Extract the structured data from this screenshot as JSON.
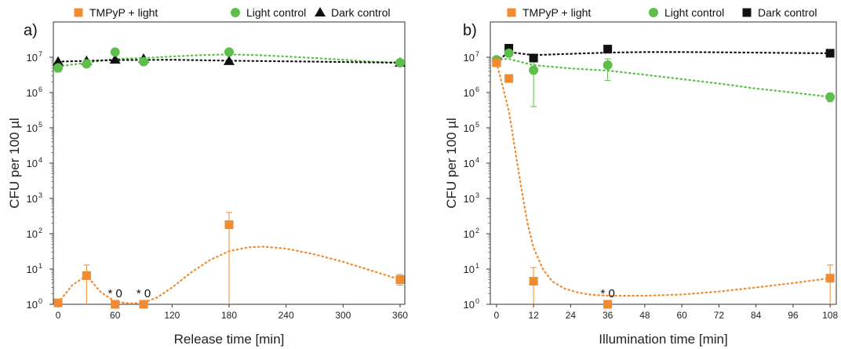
{
  "chart_data": [
    {
      "type": "scatter",
      "panel_label": "a)",
      "xlabel": "Release time [min]",
      "ylabel": "CFU per 100 µl",
      "y_scale": "log",
      "xlim": [
        -5,
        365
      ],
      "ylim": [
        1,
        100000000
      ],
      "xticks": [
        0,
        60,
        120,
        180,
        240,
        300,
        360
      ],
      "yticks": [
        {
          "value": 1,
          "base": "10",
          "exp": "0"
        },
        {
          "value": 10,
          "base": "10",
          "exp": "1"
        },
        {
          "value": 100,
          "base": "10",
          "exp": "2"
        },
        {
          "value": 1000,
          "base": "10",
          "exp": "3"
        },
        {
          "value": 10000,
          "base": "10",
          "exp": "4"
        },
        {
          "value": 100000,
          "base": "10",
          "exp": "5"
        },
        {
          "value": 1000000,
          "base": "10",
          "exp": "6"
        },
        {
          "value": 10000000,
          "base": "10",
          "exp": "7"
        }
      ],
      "legend_position": "top",
      "series": [
        {
          "name": "TMPyP + light",
          "color": "#f28a30",
          "marker": "square",
          "points": [
            {
              "x": 0,
              "y": 1.1,
              "err": 0
            },
            {
              "x": 30,
              "y": 6.5,
              "err_low": 1,
              "err_high": 13
            },
            {
              "x": 60,
              "y": 1.0,
              "err": 0
            },
            {
              "x": 90,
              "y": 1.0,
              "err": 0
            },
            {
              "x": 180,
              "y": 180,
              "err_low": 1,
              "err_high": 400
            },
            {
              "x": 360,
              "y": 5,
              "err_low": 3.5,
              "err_high": 7
            }
          ],
          "fit": [
            [
              0,
              1.1
            ],
            [
              15,
              3.5
            ],
            [
              30,
              6.5
            ],
            [
              45,
              2.2
            ],
            [
              60,
              1.2
            ],
            [
              75,
              1.05
            ],
            [
              90,
              1.1
            ],
            [
              105,
              1.6
            ],
            [
              120,
              3
            ],
            [
              140,
              8
            ],
            [
              160,
              18
            ],
            [
              180,
              32
            ],
            [
              200,
              41
            ],
            [
              215,
              43
            ],
            [
              240,
              38
            ],
            [
              270,
              26
            ],
            [
              300,
              16
            ],
            [
              330,
              9
            ],
            [
              360,
              5
            ]
          ]
        },
        {
          "name": "Light control",
          "color": "#5cbf4a",
          "marker": "circle",
          "points": [
            {
              "x": 0,
              "y": 5000000,
              "err_low": 3800000,
              "err_high": 6200000
            },
            {
              "x": 30,
              "y": 6500000
            },
            {
              "x": 60,
              "y": 14000000
            },
            {
              "x": 90,
              "y": 7500000
            },
            {
              "x": 180,
              "y": 14000000
            },
            {
              "x": 360,
              "y": 7000000
            }
          ],
          "fit": [
            [
              0,
              5500000
            ],
            [
              30,
              7000000
            ],
            [
              60,
              9000000
            ],
            [
              90,
              9500000
            ],
            [
              120,
              10500000
            ],
            [
              150,
              11500000
            ],
            [
              180,
              12000000
            ],
            [
              210,
              11500000
            ],
            [
              240,
              10500000
            ],
            [
              270,
              9500000
            ],
            [
              300,
              8500000
            ],
            [
              330,
              7500000
            ],
            [
              360,
              7000000
            ]
          ]
        },
        {
          "name": "Dark control",
          "color": "#111111",
          "marker": "triangle",
          "points": [
            {
              "x": 0,
              "y": 7500000
            },
            {
              "x": 30,
              "y": 7800000
            },
            {
              "x": 60,
              "y": 8500000
            },
            {
              "x": 90,
              "y": 9000000
            },
            {
              "x": 180,
              "y": 7800000
            },
            {
              "x": 360,
              "y": 7000000
            }
          ],
          "fit": [
            [
              0,
              7500000
            ],
            [
              60,
              8300000
            ],
            [
              120,
              8500000
            ],
            [
              180,
              8000000
            ],
            [
              270,
              7500000
            ],
            [
              360,
              7000000
            ]
          ]
        }
      ],
      "annotations": [
        {
          "text": "* 0",
          "x": 60,
          "y": 1.6
        },
        {
          "text": "* 0",
          "x": 90,
          "y": 1.6
        }
      ]
    },
    {
      "type": "scatter",
      "panel_label": "b)",
      "xlabel": "Illumination time [min]",
      "ylabel": "CFU per 100 µl",
      "y_scale": "log",
      "xlim": [
        -2,
        110
      ],
      "ylim": [
        1,
        100000000
      ],
      "xticks": [
        0,
        12,
        24,
        36,
        48,
        60,
        72,
        84,
        96,
        108
      ],
      "yticks": [
        {
          "value": 1,
          "base": "10",
          "exp": "0"
        },
        {
          "value": 10,
          "base": "10",
          "exp": "1"
        },
        {
          "value": 100,
          "base": "10",
          "exp": "2"
        },
        {
          "value": 1000,
          "base": "10",
          "exp": "3"
        },
        {
          "value": 10000,
          "base": "10",
          "exp": "4"
        },
        {
          "value": 100000,
          "base": "10",
          "exp": "5"
        },
        {
          "value": 1000000,
          "base": "10",
          "exp": "6"
        },
        {
          "value": 10000000,
          "base": "10",
          "exp": "7"
        }
      ],
      "legend_position": "top",
      "series": [
        {
          "name": "TMPyP + light",
          "color": "#f28a30",
          "marker": "square",
          "points": [
            {
              "x": 0,
              "y": 7000000
            },
            {
              "x": 4,
              "y": 2500000
            },
            {
              "x": 12,
              "y": 4.5,
              "err_low": 1,
              "err_high": 11
            },
            {
              "x": 36,
              "y": 1.0,
              "err": 0
            },
            {
              "x": 108,
              "y": 5.5,
              "err_low": 1,
              "err_high": 13
            }
          ],
          "fit": [
            [
              0,
              7000000
            ],
            [
              2,
              1500000
            ],
            [
              4,
              300000
            ],
            [
              6,
              25000
            ],
            [
              8,
              2000
            ],
            [
              10,
              200
            ],
            [
              12,
              40
            ],
            [
              15,
              10
            ],
            [
              18,
              4.5
            ],
            [
              22,
              2.8
            ],
            [
              26,
              2.2
            ],
            [
              30,
              1.9
            ],
            [
              36,
              1.75
            ],
            [
              48,
              1.75
            ],
            [
              60,
              1.9
            ],
            [
              72,
              2.3
            ],
            [
              84,
              3
            ],
            [
              96,
              4
            ],
            [
              108,
              5.5
            ]
          ]
        },
        {
          "name": "Light control",
          "color": "#5cbf4a",
          "marker": "circle",
          "points": [
            {
              "x": 0,
              "y": 8500000
            },
            {
              "x": 4,
              "y": 13000000
            },
            {
              "x": 12,
              "y": 4300000,
              "err_low": 400000,
              "err_high": 8000000
            },
            {
              "x": 36,
              "y": 6000000,
              "err_low": 2200000,
              "err_high": 9000000
            },
            {
              "x": 108,
              "y": 750000,
              "err_low": 550000,
              "err_high": 950000
            }
          ],
          "fit": [
            [
              0,
              8500000
            ],
            [
              4,
              9000000
            ],
            [
              12,
              6000000
            ],
            [
              24,
              4800000
            ],
            [
              36,
              4200000
            ],
            [
              48,
              3200000
            ],
            [
              60,
              2400000
            ],
            [
              72,
              1800000
            ],
            [
              84,
              1300000
            ],
            [
              96,
              1000000
            ],
            [
              108,
              750000
            ]
          ]
        },
        {
          "name": "Dark control",
          "color": "#111111",
          "marker": "square",
          "points": [
            {
              "x": 0,
              "y": 7500000
            },
            {
              "x": 4,
              "y": 18000000
            },
            {
              "x": 12,
              "y": 9500000
            },
            {
              "x": 36,
              "y": 17000000
            },
            {
              "x": 108,
              "y": 13000000
            }
          ],
          "fit": [
            [
              0,
              7500000
            ],
            [
              4,
              14000000
            ],
            [
              12,
              11500000
            ],
            [
              24,
              12500000
            ],
            [
              36,
              13500000
            ],
            [
              48,
              14000000
            ],
            [
              60,
              14000000
            ],
            [
              72,
              13800000
            ],
            [
              84,
              13500000
            ],
            [
              96,
              13200000
            ],
            [
              108,
              13000000
            ]
          ]
        }
      ],
      "annotations": [
        {
          "text": "* 0",
          "x": 36,
          "y": 1.6
        }
      ]
    }
  ]
}
